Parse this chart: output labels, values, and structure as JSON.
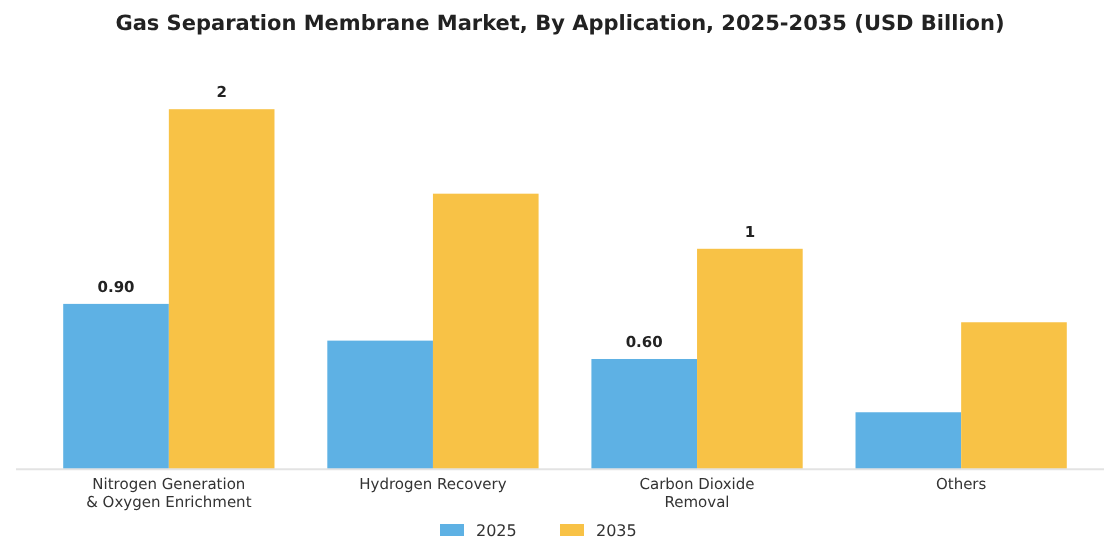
{
  "chart_data": {
    "type": "bar",
    "title": "Gas Separation Membrane Market, By Application, 2025-2035 (USD Billion)",
    "categories": [
      "Nitrogen Generation\n& Oxygen Enrichment",
      "Hydrogen Recovery",
      "Carbon Dioxide\nRemoval",
      "Others"
    ],
    "series": [
      {
        "name": "2025",
        "color": "#5eb1e4",
        "values": [
          0.9,
          0.7,
          0.6,
          0.31
        ],
        "value_labels": [
          "0.90",
          null,
          "0.60",
          null
        ]
      },
      {
        "name": "2035",
        "color": "#f8c246",
        "values": [
          1.96,
          1.5,
          1.2,
          0.8
        ],
        "value_labels": [
          "2",
          null,
          "1",
          null
        ]
      }
    ],
    "legend": "bottom",
    "grid": false
  }
}
